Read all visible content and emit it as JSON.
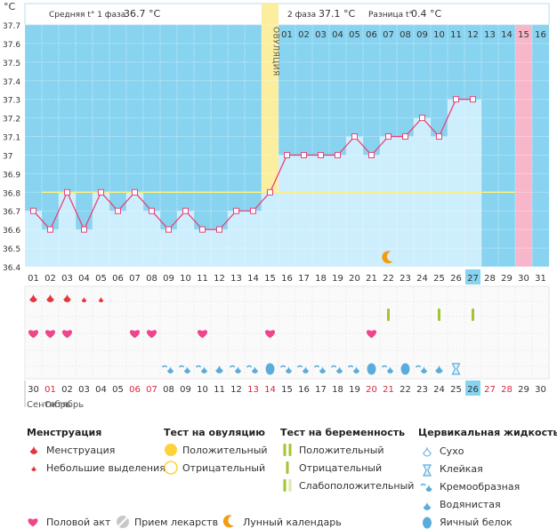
{
  "chart_data": {
    "type": "line",
    "y_unit": "°C",
    "ylim": [
      36.4,
      37.7
    ],
    "y_ticks": [
      "37.7",
      "37.6",
      "37.5",
      "37.4",
      "37.3",
      "37.2",
      "37.1",
      "37",
      "36.9",
      "36.8",
      "36.7",
      "36.6",
      "36.5",
      "36.4"
    ],
    "cycle_days": [
      "01",
      "02",
      "03",
      "04",
      "05",
      "06",
      "07",
      "08",
      "09",
      "10",
      "11",
      "12",
      "13",
      "14",
      "15",
      "16",
      "17",
      "18",
      "19",
      "20",
      "21",
      "22",
      "23",
      "24",
      "25",
      "26",
      "27",
      "28",
      "29",
      "30",
      "31"
    ],
    "temperatures": [
      36.7,
      36.6,
      36.8,
      36.6,
      36.8,
      36.7,
      36.8,
      36.7,
      36.6,
      36.7,
      36.6,
      36.6,
      36.7,
      36.7,
      36.8,
      37.0,
      37.0,
      37.0,
      37.0,
      37.1,
      37.0,
      37.1,
      37.1,
      37.2,
      37.1,
      37.3,
      37.3,
      null,
      null,
      null,
      null
    ],
    "coverline": 36.8,
    "ovulation_day": 15,
    "ovulation_label": "ОВУЛЯЦИЯ",
    "current_day": 27,
    "period_day": 30,
    "phase2_day_labels": [
      "01",
      "02",
      "03",
      "04",
      "05",
      "06",
      "07",
      "08",
      "09",
      "10",
      "11",
      "12",
      "13",
      "14",
      "15",
      "16"
    ],
    "header": {
      "phase1_label": "Средняя t° 1 фаза",
      "phase1_value": "36.7 °C",
      "phase2_label": "2 фаза",
      "phase2_value": "37.1 °C",
      "diff_label": "Разница t°",
      "diff_value": "0.4 °C"
    },
    "moon_day": 22,
    "menstruation": [
      {
        "day": 1,
        "size": "big"
      },
      {
        "day": 2,
        "size": "big"
      },
      {
        "day": 3,
        "size": "big"
      },
      {
        "day": 4,
        "size": "small"
      },
      {
        "day": 5,
        "size": "small"
      }
    ],
    "pregnancy_tests": [
      22,
      25,
      27
    ],
    "intercourse": [
      1,
      2,
      3,
      7,
      8,
      11,
      15,
      21
    ],
    "cervical_fluid": [
      {
        "day": 9,
        "type": "creamy"
      },
      {
        "day": 10,
        "type": "creamy"
      },
      {
        "day": 11,
        "type": "creamy"
      },
      {
        "day": 12,
        "type": "watery"
      },
      {
        "day": 13,
        "type": "creamy"
      },
      {
        "day": 14,
        "type": "creamy"
      },
      {
        "day": 15,
        "type": "egg_white"
      },
      {
        "day": 16,
        "type": "creamy"
      },
      {
        "day": 17,
        "type": "creamy"
      },
      {
        "day": 18,
        "type": "creamy"
      },
      {
        "day": 19,
        "type": "creamy"
      },
      {
        "day": 20,
        "type": "creamy"
      },
      {
        "day": 21,
        "type": "egg_white"
      },
      {
        "day": 22,
        "type": "creamy"
      },
      {
        "day": 23,
        "type": "egg_white"
      },
      {
        "day": 24,
        "type": "creamy"
      },
      {
        "day": 25,
        "type": "watery"
      },
      {
        "day": 26,
        "type": "sticky"
      }
    ],
    "calendar_dates": [
      "30",
      "01",
      "02",
      "03",
      "04",
      "05",
      "06",
      "07",
      "08",
      "09",
      "10",
      "11",
      "12",
      "13",
      "14",
      "15",
      "16",
      "17",
      "18",
      "19",
      "20",
      "21",
      "22",
      "23",
      "24",
      "25",
      "26",
      "27",
      "28",
      "29",
      "30"
    ],
    "calendar_red_days": [
      1,
      6,
      7,
      13,
      14,
      20,
      21,
      27,
      28
    ],
    "calendar_today_index": 27,
    "month_labels": [
      "Сентябрь",
      "Октябрь"
    ]
  },
  "legend": {
    "menstruation": {
      "title": "Менструация",
      "items": [
        "Менструация",
        "Небольшие выделения"
      ]
    },
    "ovulation_test": {
      "title": "Тест на овуляцию",
      "items": [
        "Положительный",
        "Отрицательный"
      ]
    },
    "pregnancy_test": {
      "title": "Тест на беременность",
      "items": [
        "Положительный",
        "Отрицательный",
        "Слабоположительный"
      ]
    },
    "cervical": {
      "title": "Цервикальная жидкость",
      "items": [
        "Сухо",
        "Клейкая",
        "Кремообразная",
        "Водянистая",
        "Яичный белок"
      ]
    },
    "bottom": [
      "Половой акт",
      "Прием лекарств",
      "Лунный календарь"
    ]
  },
  "colors": {
    "grid_bg": "#87d3f0",
    "bar_fill": "#cdeefc",
    "line": "#e8437a",
    "ovulation": "#fbee9f",
    "period": "#f7b6c9",
    "coverline": "#fff17a",
    "accent_day": "#87d3f0",
    "menstruation_red": "#e8343b",
    "intercourse": "#f0458b",
    "pregnancy_test": "#a3c532",
    "cervical_blue": "#5aacdb",
    "sun": "#fcd33b",
    "moon": "#f29d0f"
  }
}
